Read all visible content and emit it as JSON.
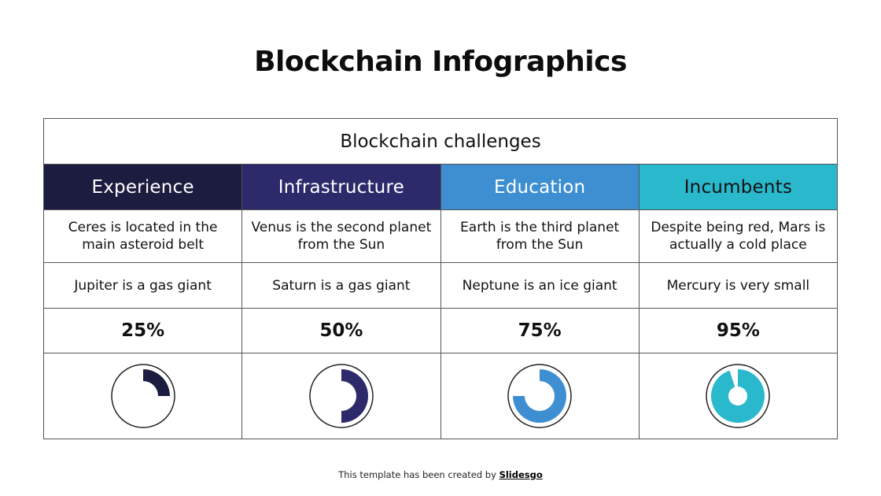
{
  "title": "Blockchain Infographics",
  "table": {
    "caption": "Blockchain challenges",
    "columns": [
      {
        "heading": "Experience",
        "description": "Ceres is located in the main asteroid belt",
        "fact": "Jupiter is a gas giant",
        "percent_label": "25%",
        "percent": 25,
        "header_color": "#1b1c3f",
        "header_text_color": "#ffffff",
        "chart_color": "#1b1c3f",
        "chart_style": "thin-ring"
      },
      {
        "heading": "Infrastructure",
        "description": "Venus is the second planet from the Sun",
        "fact": "Saturn is a gas giant",
        "percent_label": "50%",
        "percent": 50,
        "header_color": "#2c2a6b",
        "header_text_color": "#ffffff",
        "chart_color": "#2c2a6b",
        "chart_style": "thin-ring"
      },
      {
        "heading": "Education",
        "description": "Earth is the third planet from the Sun",
        "fact": "Neptune is an ice giant",
        "percent_label": "75%",
        "percent": 75,
        "header_color": "#3d8fd1",
        "header_text_color": "#ffffff",
        "chart_color": "#3d8fd1",
        "chart_style": "thin-ring"
      },
      {
        "heading": "Incumbents",
        "description": "Despite being red, Mars is actually a cold place",
        "fact": "Mercury is very small",
        "percent_label": "95%",
        "percent": 95,
        "header_color": "#29b8cc",
        "header_text_color": "#111111",
        "chart_color": "#29b8cc",
        "chart_style": "thick-ring"
      }
    ]
  },
  "footer": {
    "text": "This template has been created by ",
    "brand": "Slidesgo"
  }
}
